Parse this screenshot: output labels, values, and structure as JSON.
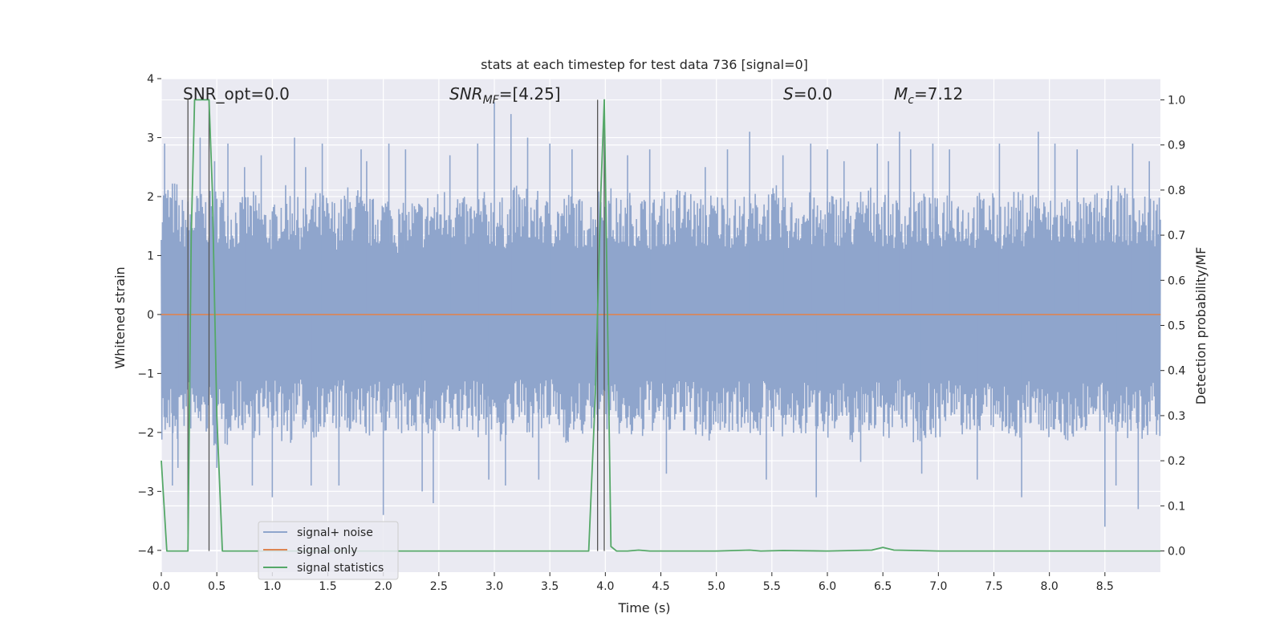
{
  "chart_data": {
    "type": "line",
    "title": "stats at each timestep for test data 736 [signal=0]",
    "xlabel": "Time (s)",
    "ylabel_left": "Whitened strain",
    "ylabel_right": "Detection probability/MF",
    "xlim": [
      0.0,
      9.0
    ],
    "ylim_left": [
      -4.37,
      4.0
    ],
    "ylim_right": [
      -0.047,
      1.047
    ],
    "x_ticks": [
      "0.0",
      "0.5",
      "1.0",
      "1.5",
      "2.0",
      "2.5",
      "3.0",
      "3.5",
      "4.0",
      "4.5",
      "5.0",
      "5.5",
      "6.0",
      "6.5",
      "7.0",
      "7.5",
      "8.0",
      "8.5"
    ],
    "y_ticks_left": [
      "4",
      "3",
      "2",
      "1",
      "0",
      "−1",
      "−2",
      "−3",
      "−4"
    ],
    "y_ticks_right": [
      "1.0",
      "0.9",
      "0.8",
      "0.7",
      "0.6",
      "0.5",
      "0.4",
      "0.3",
      "0.2",
      "0.1",
      "0.0"
    ],
    "grid": true,
    "legend_position": "lower-left",
    "annotations": {
      "snr_opt": "SNR_opt=0.0",
      "snr_mf_main": "SNR",
      "snr_mf_sub": "MF",
      "snr_mf_rest": "=[4.25]",
      "s_italic": "S",
      "s_rest": "=0.0",
      "mc_main": "M",
      "mc_sub": "c",
      "mc_rest": "=7.12"
    },
    "colors": {
      "noise": "#8fa5cc",
      "signal_only": "#dd8452",
      "statistics": "#55a868",
      "vlines": "#555555",
      "background": "#eaeaf2",
      "grid": "#ffffff"
    },
    "vertical_markers_x": [
      0.24,
      0.43,
      3.93,
      3.99
    ],
    "series": [
      {
        "name": "signal+ noise",
        "axis": "left",
        "envelope_upper": [
          2.3,
          2.0,
          2.1,
          2.2,
          2.0,
          2.1,
          1.9,
          2.2,
          2.0,
          2.1,
          2.0,
          2.2,
          2.0,
          2.1,
          1.9,
          2.0,
          2.1,
          2.2,
          2.0,
          2.1,
          2.0,
          2.2,
          2.1,
          2.0,
          2.1,
          2.0,
          2.2,
          2.0,
          2.1,
          2.0,
          2.1,
          2.2,
          2.0,
          2.1,
          2.0,
          2.1,
          2.2,
          2.0,
          2.1,
          2.0,
          2.1,
          2.0,
          2.2,
          2.1,
          2.0,
          2.1,
          2.0,
          2.2,
          2.0,
          2.1,
          2.0,
          2.1,
          2.2,
          2.0,
          2.1,
          2.0,
          2.1,
          2.2,
          2.0,
          2.1
        ],
        "envelope_lower": [
          -2.2,
          -2.0,
          -2.1,
          -2.3,
          -2.0,
          -2.1,
          -2.0,
          -2.2,
          -2.0,
          -2.1,
          -2.0,
          -2.2,
          -2.1,
          -2.0,
          -2.1,
          -2.0,
          -2.2,
          -2.1,
          -2.0,
          -2.1,
          -2.2,
          -2.0,
          -2.1,
          -2.0,
          -2.2,
          -2.1,
          -2.0,
          -2.1,
          -2.2,
          -2.0,
          -2.1,
          -2.0,
          -2.2,
          -2.1,
          -2.0,
          -2.1,
          -2.0,
          -2.2,
          -2.1,
          -2.0,
          -2.1,
          -2.2,
          -2.0,
          -2.1,
          -2.0,
          -2.2,
          -2.1,
          -2.0,
          -2.1,
          -2.0,
          -2.2,
          -2.1,
          -2.0,
          -2.1,
          -2.2,
          -2.0,
          -2.1,
          -2.0,
          -2.2,
          -2.1
        ],
        "spikes": [
          [
            0.03,
            2.9
          ],
          [
            0.1,
            -2.9
          ],
          [
            0.15,
            -2.6
          ],
          [
            0.35,
            3.0
          ],
          [
            0.48,
            2.6
          ],
          [
            0.5,
            -2.6
          ],
          [
            0.6,
            2.9
          ],
          [
            0.75,
            2.5
          ],
          [
            0.82,
            -2.9
          ],
          [
            0.9,
            2.7
          ],
          [
            1.0,
            -3.1
          ],
          [
            1.2,
            3.0
          ],
          [
            1.3,
            2.5
          ],
          [
            1.35,
            -2.9
          ],
          [
            1.45,
            2.9
          ],
          [
            1.6,
            -2.9
          ],
          [
            1.8,
            2.8
          ],
          [
            1.85,
            2.6
          ],
          [
            2.0,
            -3.4
          ],
          [
            2.05,
            2.9
          ],
          [
            2.2,
            2.8
          ],
          [
            2.35,
            -3.0
          ],
          [
            2.45,
            -3.2
          ],
          [
            2.6,
            2.7
          ],
          [
            2.85,
            2.9
          ],
          [
            2.95,
            -2.8
          ],
          [
            3.0,
            3.6
          ],
          [
            3.1,
            -2.9
          ],
          [
            3.15,
            3.4
          ],
          [
            3.3,
            3.0
          ],
          [
            3.4,
            -2.8
          ],
          [
            3.5,
            2.9
          ],
          [
            3.7,
            2.8
          ],
          [
            4.2,
            2.7
          ],
          [
            4.4,
            2.8
          ],
          [
            4.55,
            -2.7
          ],
          [
            4.9,
            2.5
          ],
          [
            5.1,
            2.8
          ],
          [
            5.3,
            3.1
          ],
          [
            5.45,
            -2.8
          ],
          [
            5.6,
            2.7
          ],
          [
            5.85,
            2.9
          ],
          [
            5.9,
            -3.1
          ],
          [
            6.0,
            2.8
          ],
          [
            6.15,
            2.6
          ],
          [
            6.3,
            -2.5
          ],
          [
            6.45,
            2.9
          ],
          [
            6.55,
            2.6
          ],
          [
            6.65,
            3.1
          ],
          [
            6.75,
            2.8
          ],
          [
            6.85,
            -2.7
          ],
          [
            6.95,
            2.9
          ],
          [
            7.1,
            2.8
          ],
          [
            7.35,
            -2.8
          ],
          [
            7.55,
            2.9
          ],
          [
            7.75,
            -3.1
          ],
          [
            7.9,
            3.1
          ],
          [
            8.05,
            2.9
          ],
          [
            8.25,
            2.8
          ],
          [
            8.5,
            -3.6
          ],
          [
            8.6,
            -2.9
          ],
          [
            8.75,
            2.9
          ],
          [
            8.8,
            -3.3
          ],
          [
            8.9,
            2.6
          ]
        ]
      },
      {
        "name": "signal only",
        "axis": "left",
        "x": [
          0.0,
          9.0
        ],
        "y": [
          0.0,
          0.0
        ]
      },
      {
        "name": "signal statistics",
        "axis": "right",
        "x": [
          0.0,
          0.05,
          0.1,
          0.15,
          0.2,
          0.24,
          0.27,
          0.3,
          0.35,
          0.4,
          0.43,
          0.46,
          0.5,
          0.55,
          0.6,
          1.0,
          1.5,
          2.0,
          2.5,
          3.0,
          3.5,
          3.85,
          3.91,
          3.96,
          3.99,
          4.05,
          4.1,
          4.2,
          4.3,
          4.4,
          4.6,
          5.0,
          5.3,
          5.4,
          5.6,
          6.0,
          6.4,
          6.5,
          6.6,
          6.8,
          7.0,
          8.0,
          9.0
        ],
        "y": [
          0.2,
          0.0,
          0.0,
          0.0,
          0.0,
          0.0,
          0.7,
          1.0,
          1.0,
          1.0,
          1.0,
          0.8,
          0.3,
          0.0,
          0.0,
          0.0,
          0.0,
          0.0,
          0.0,
          0.0,
          0.0,
          0.0,
          0.35,
          0.8,
          1.0,
          0.01,
          0.0,
          0.0,
          0.002,
          0.0,
          0.0,
          0.0,
          0.002,
          0.0,
          0.001,
          0.0,
          0.002,
          0.008,
          0.002,
          0.001,
          0.0,
          0.0,
          0.0
        ]
      }
    ]
  }
}
